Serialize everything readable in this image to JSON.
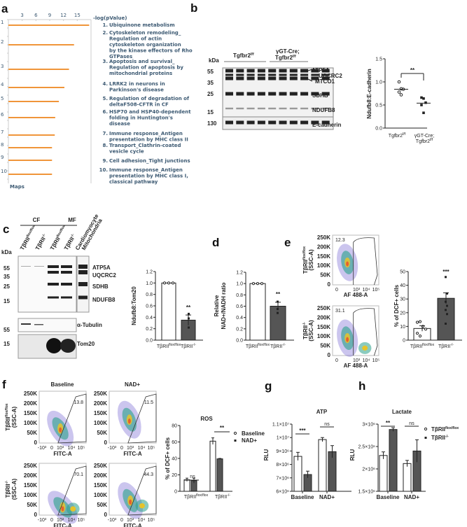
{
  "panels": {
    "a": {
      "label": "a",
      "axis_title": "-log(pValue)",
      "footer": "Maps",
      "ticks": [
        "3",
        "6",
        "9",
        "12",
        "15"
      ],
      "rows": [
        "1",
        "2",
        "3",
        "4",
        "5",
        "6",
        "7",
        "8",
        "9",
        "10"
      ],
      "pathways": [
        {
          "n": "1.",
          "lines": [
            "Ubiquinone metabolism"
          ]
        },
        {
          "n": "2.",
          "lines": [
            "Cytoskeleton remodeling_",
            "Regulation of actin",
            "cytoskeleton organization",
            "by the kinase effectors of Rho",
            "GTPases"
          ]
        },
        {
          "n": "3.",
          "lines": [
            "Apoptosis and survival_",
            "Regulation of apoptosis by",
            "mitochondrial proteins"
          ]
        },
        {
          "n": "4.",
          "lines": [
            "LRRK2 in neurons in",
            "Parkinson's disease"
          ]
        },
        {
          "n": "5.",
          "lines": [
            "Regulation of degradation of",
            "deltaF508-CFTR in CF"
          ]
        },
        {
          "n": "6.",
          "lines": [
            "HSP70 and HSP40-dependent",
            "folding in Huntington's",
            "disease"
          ]
        },
        {
          "n": "7.",
          "lines": [
            "Immune response_Antigen",
            "presentation by MHC class II"
          ]
        },
        {
          "n": "8.",
          "lines": [
            "Transport_Clathrin-coated",
            "vesicle cycle"
          ]
        },
        {
          "n": "9.",
          "lines": [
            "Cell adhesion_Tight junctions"
          ]
        },
        {
          "n": "10.",
          "lines": [
            "Immune response_Antigen",
            "presentation by MHC class I,",
            "classical pathway"
          ]
        }
      ]
    },
    "b": {
      "label": "b",
      "kda": "kDa",
      "group1": "Tgfbr2",
      "group1_sup": "f/f",
      "group2_l1": "γGT-Cre;",
      "group2_l2": "Tgfbr2",
      "group2_sup": "f/f",
      "markers": [
        "55",
        "35",
        "25",
        "15",
        "130"
      ],
      "bands": [
        "ATP5A",
        "UQCRC2",
        "MTCO1",
        "SDHB",
        "NDUFB8",
        "E-cadherin"
      ],
      "ylabel": "Ndufb8:E-cadherin",
      "sig": "**",
      "yticks": [
        "0.0",
        "0.5",
        "1.0",
        "1.5"
      ],
      "xcat1": "Tgfbr2",
      "xcat1_sup": "f/f",
      "xcat2_l1": "γGT-Cre;",
      "xcat2_l2": "Tgfbr2",
      "xcat2_sup": "f/f"
    },
    "c": {
      "label": "c",
      "cf": "CF",
      "mf": "MF",
      "kda": "kDa",
      "lanes": [
        "TβRIIflox/flox",
        "TβRII-/-",
        "TβRIIflox/flox",
        "TβRII-/-",
        "Cardiomyocyte Mitochondria"
      ],
      "markers": [
        "55",
        "35",
        "25",
        "15"
      ],
      "markers2": [
        "55"
      ],
      "markers3": [
        "15"
      ],
      "bands": [
        "ATP5A",
        "UQCRC2",
        "SDHB",
        "NDUFB8"
      ],
      "tubulin": "α-Tubulin",
      "tom20": "Tom20",
      "ylabel": "Ndufb8:Tom20",
      "sig": "**",
      "yticks": [
        "0.0",
        "0.2",
        "0.4",
        "0.6",
        "0.8",
        "1.0",
        "1.2"
      ],
      "xcat1": "TβRII",
      "xcat1_sup": "flox/flox",
      "xcat2": "TβRII",
      "xcat2_sup": "-/-"
    },
    "d": {
      "label": "d",
      "ylabel1": "Relative",
      "ylabel2": "NAD+/NADH ratio",
      "sig": "**",
      "yticks": [
        "0.0",
        "0.2",
        "0.4",
        "0.6",
        "0.8",
        "1.0",
        "1.2"
      ],
      "xcat1": "TβRII",
      "xcat1_sup": "flox/flox",
      "xcat2": "TβRII",
      "xcat2_sup": "-/-"
    },
    "e": {
      "label": "e",
      "flow_top_pct": "12.3",
      "flow_bottom_pct": "31.1",
      "flow_ylabel": "(SSC-A)",
      "row1": "TβRII",
      "row1_sup": "flox/flox",
      "row2": "TβRII",
      "row2_sup": "-/-",
      "yticks": [
        "0",
        "50K",
        "100K",
        "150K",
        "200K",
        "250K"
      ],
      "xticks": [
        "0",
        "10³",
        "10⁴",
        "10⁵"
      ],
      "xlabel": "AF 488-A",
      "ylabel": "% of DCF+ cells",
      "sig": "***",
      "bar_yticks": [
        "0",
        "10",
        "20",
        "30",
        "40",
        "50"
      ],
      "xcat1": "TβRII",
      "xcat1_sup": "flox/flox",
      "xcat2": "TβRII",
      "xcat2_sup": "-/-"
    },
    "f": {
      "label": "f",
      "col1": "Baseline",
      "col2": "NAD+",
      "pcts": [
        "13.8",
        "11.5",
        "70.1",
        "44.3"
      ],
      "xlabel": "FITC-A",
      "flow_ylabel": "(SSC-A)",
      "row1": "TβRII",
      "row1_sup": "flox/flox",
      "row2": "TβRII",
      "row2_sup": "-/-",
      "yticks": [
        "0",
        "50K",
        "100K",
        "150K",
        "200K",
        "250K"
      ],
      "xticks": [
        "-10³",
        "0",
        "10³",
        "10⁴",
        "10⁵"
      ],
      "ros_title": "ROS",
      "ylabel": "% of DCF+ cells",
      "bar_yticks": [
        "0",
        "20",
        "40",
        "60",
        "80"
      ],
      "sig1": "ns",
      "sig2": "**",
      "legend": [
        "Baseline",
        "NAD+"
      ],
      "xcat1": "TβRII",
      "xcat1_sup": "flox/flox",
      "xcat2": "TβRII",
      "xcat2_sup": "-/-"
    },
    "g": {
      "label": "g",
      "title": "ATP",
      "ylabel": "RLU",
      "yticks": [
        "6×10⁶",
        "7×10⁶",
        "8×10⁶",
        "9×10⁶",
        "1×10⁷",
        "1.1×10⁷"
      ],
      "sig1": "***",
      "sig2": "ns",
      "xcats": [
        "Baseline",
        "NAD+"
      ]
    },
    "h": {
      "label": "h",
      "title": "Lactate",
      "ylabel": "RLU",
      "yticks": [
        "1.5×10⁶",
        "2×10⁶",
        "2.5×10⁶",
        "3×10⁶"
      ],
      "sig1": "**",
      "sig2": "ns",
      "xcats": [
        "Baseline",
        "NAD+"
      ],
      "legend1": "TβRII",
      "legend1_sup": "flox/flox",
      "legend2": "TβRII",
      "legend2_sup": "-/-"
    }
  },
  "chart_data": [
    {
      "panel": "a",
      "type": "bar",
      "orientation": "horizontal",
      "title": "",
      "xlabel": "-log(pValue)",
      "ylabel": "Maps",
      "xlim": [
        0,
        18
      ],
      "categories": [
        "Ubiquinone metabolism",
        "Cytoskeleton remodeling_Regulation of actin cytoskeleton organization by the kinase effectors of Rho GTPases",
        "Apoptosis and survival_Regulation of apoptosis by mitochondrial proteins",
        "LRRK2 in neurons in Parkinson's disease",
        "Regulation of degradation of deltaF508-CFTR in CF",
        "HSP70 and HSP40-dependent folding in Huntington's disease",
        "Immune response_Antigen presentation by MHC class II",
        "Transport_Clathrin-coated vesicle cycle",
        "Cell adhesion_Tight junctions",
        "Immune response_Antigen presentation by MHC class I, classical pathway"
      ],
      "values": [
        17.6,
        14.3,
        13.2,
        12.2,
        11.0,
        10.2,
        10.1,
        9.5,
        9.5,
        9.5
      ],
      "color": "#f0953a"
    },
    {
      "panel": "b",
      "type": "scatter",
      "ylabel": "Ndufb8:E-cadherin",
      "ylim": [
        0,
        1.5
      ],
      "categories": [
        "Tgfbr2 f/f",
        "γGT-Cre; Tgfbr2 f/f"
      ],
      "series": [
        {
          "name": "Tgfbr2 f/f",
          "points": [
            1.0,
            0.85,
            0.84,
            0.78,
            0.72
          ],
          "mean": 0.84
        },
        {
          "name": "γGT-Cre; Tgfbr2 f/f",
          "points": [
            0.66,
            0.64,
            0.55,
            0.5,
            0.33
          ],
          "mean": 0.54
        }
      ],
      "annotation": "**"
    },
    {
      "panel": "c",
      "type": "bar",
      "ylabel": "Ndufb8:Tom20",
      "ylim": [
        0,
        1.2
      ],
      "categories": [
        "TβRII flox/flox",
        "TβRII -/-"
      ],
      "values": [
        1.0,
        0.35
      ],
      "sem": [
        0,
        0.09
      ],
      "points": [
        [
          1.0,
          1.0,
          1.0
        ],
        [
          0.46,
          0.38,
          0.22
        ]
      ],
      "annotation": "**"
    },
    {
      "panel": "d",
      "type": "bar",
      "ylabel": "Relative NAD+/NADH ratio",
      "ylim": [
        0,
        1.2
      ],
      "categories": [
        "TβRII flox/flox",
        "TβRII -/-"
      ],
      "values": [
        1.0,
        0.6
      ],
      "sem": [
        0,
        0.07
      ],
      "points": [
        [
          1.0,
          1.0,
          1.0
        ],
        [
          0.68,
          0.55,
          0.48
        ]
      ],
      "annotation": "**"
    },
    {
      "panel": "e",
      "type": "bar",
      "ylabel": "% of DCF+ cells",
      "ylim": [
        0,
        50
      ],
      "categories": [
        "TβRII flox/flox",
        "TβRII -/-"
      ],
      "values": [
        8.5,
        30.5
      ],
      "sem": [
        2,
        4
      ],
      "points": [
        [
          13,
          13.5,
          10,
          8,
          5,
          3
        ],
        [
          46,
          34,
          28,
          25,
          22,
          19,
          12
        ]
      ],
      "annotation": "***",
      "flow": {
        "top_gate_pct": 12.3,
        "bottom_gate_pct": 31.1,
        "xlabel": "AF 488-A",
        "ylabel": "SSC-A"
      }
    },
    {
      "panel": "f",
      "type": "bar",
      "title": "ROS",
      "ylabel": "% of DCF+ cells",
      "ylim": [
        0,
        80
      ],
      "categories": [
        "TβRII flox/flox",
        "TβRII -/-"
      ],
      "series": [
        {
          "name": "Baseline",
          "values": [
            14,
            61
          ],
          "sem": [
            2,
            4
          ]
        },
        {
          "name": "NAD+",
          "values": [
            13,
            39.5
          ],
          "sem": [
            3,
            0.5
          ]
        }
      ],
      "annotations": [
        "ns",
        "**"
      ],
      "flow": {
        "gates": {
          "flox_baseline": 13.8,
          "flox_nad": 11.5,
          "ko_baseline": 70.1,
          "ko_nad": 44.3
        },
        "xlabel": "FITC-A",
        "ylabel": "SSC-A"
      }
    },
    {
      "panel": "g",
      "type": "bar",
      "title": "ATP",
      "ylabel": "RLU",
      "ylim": [
        6000000,
        11000000
      ],
      "categories": [
        "Baseline",
        "NAD+"
      ],
      "series": [
        {
          "name": "TβRII flox/flox",
          "values": [
            8600000,
            9850000
          ],
          "sem": [
            300000,
            150000
          ]
        },
        {
          "name": "TβRII -/-",
          "values": [
            7250000,
            8950000
          ],
          "sem": [
            250000,
            450000
          ]
        }
      ],
      "annotations": [
        "***",
        "ns"
      ]
    },
    {
      "panel": "h",
      "type": "bar",
      "title": "Lactate",
      "ylabel": "RLU",
      "ylim": [
        1500000,
        3000000
      ],
      "categories": [
        "Baseline",
        "NAD+"
      ],
      "series": [
        {
          "name": "TβRII flox/flox",
          "values": [
            2300000,
            2120000
          ],
          "sem": [
            80000,
            70000
          ]
        },
        {
          "name": "TβRII -/-",
          "values": [
            2880000,
            2400000
          ],
          "sem": [
            40000,
            250000
          ]
        }
      ],
      "annotations": [
        "**",
        "ns"
      ]
    }
  ]
}
